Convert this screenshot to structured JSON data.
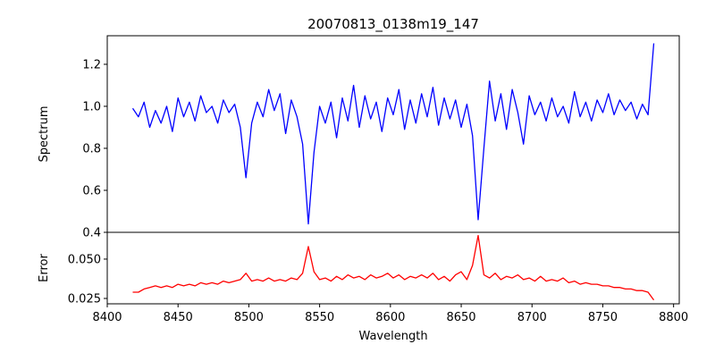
{
  "chart_data": [
    {
      "type": "line",
      "title": "20070813_0138m19_147",
      "xlabel": "",
      "ylabel": "Spectrum",
      "xlim": [
        8400,
        8804
      ],
      "ylim": [
        0.4,
        1.336
      ],
      "yticks": [
        0.4,
        0.6,
        0.8,
        1.0,
        1.2
      ],
      "ytick_labels": [
        "0.4",
        "0.6",
        "0.8",
        "1.0",
        "1.2"
      ],
      "color": "#0000ff",
      "x_start": 8418,
      "x_step": 4,
      "values": [
        0.99,
        0.95,
        1.02,
        0.9,
        0.98,
        0.92,
        1.0,
        0.88,
        1.04,
        0.95,
        1.02,
        0.93,
        1.05,
        0.97,
        1.0,
        0.92,
        1.03,
        0.97,
        1.01,
        0.9,
        0.66,
        0.92,
        1.02,
        0.95,
        1.08,
        0.98,
        1.06,
        0.87,
        1.03,
        0.95,
        0.82,
        0.44,
        0.78,
        1.0,
        0.92,
        1.02,
        0.85,
        1.04,
        0.93,
        1.1,
        0.9,
        1.05,
        0.94,
        1.02,
        0.88,
        1.04,
        0.96,
        1.08,
        0.89,
        1.03,
        0.92,
        1.06,
        0.95,
        1.09,
        0.91,
        1.04,
        0.94,
        1.03,
        0.9,
        1.01,
        0.86,
        0.46,
        0.8,
        1.12,
        0.93,
        1.06,
        0.89,
        1.08,
        0.97,
        0.82,
        1.05,
        0.96,
        1.02,
        0.93,
        1.04,
        0.95,
        1.0,
        0.92,
        1.07,
        0.95,
        1.02,
        0.93,
        1.03,
        0.97,
        1.06,
        0.96,
        1.03,
        0.98,
        1.02,
        0.94,
        1.01,
        0.96,
        1.3
      ]
    },
    {
      "type": "line",
      "xlabel": "Wavelength",
      "ylabel": "Error",
      "xlim": [
        8400,
        8804
      ],
      "ylim": [
        0.0216,
        0.067
      ],
      "xticks": [
        8400,
        8450,
        8500,
        8550,
        8600,
        8650,
        8700,
        8750,
        8800
      ],
      "xtick_labels": [
        "8400",
        "8450",
        "8500",
        "8550",
        "8600",
        "8650",
        "8700",
        "8750",
        "8800"
      ],
      "yticks": [
        0.025,
        0.05
      ],
      "ytick_labels": [
        "0.025",
        "0.050"
      ],
      "color": "#ff0000",
      "x_start": 8418,
      "x_step": 4,
      "values": [
        0.029,
        0.029,
        0.031,
        0.032,
        0.033,
        0.032,
        0.033,
        0.032,
        0.034,
        0.033,
        0.034,
        0.033,
        0.035,
        0.034,
        0.035,
        0.034,
        0.036,
        0.035,
        0.036,
        0.037,
        0.041,
        0.036,
        0.037,
        0.036,
        0.038,
        0.036,
        0.037,
        0.036,
        0.038,
        0.037,
        0.041,
        0.058,
        0.042,
        0.037,
        0.038,
        0.036,
        0.039,
        0.037,
        0.04,
        0.038,
        0.039,
        0.037,
        0.04,
        0.038,
        0.039,
        0.041,
        0.038,
        0.04,
        0.037,
        0.039,
        0.038,
        0.04,
        0.038,
        0.041,
        0.037,
        0.039,
        0.036,
        0.04,
        0.042,
        0.037,
        0.046,
        0.065,
        0.04,
        0.038,
        0.041,
        0.037,
        0.039,
        0.038,
        0.04,
        0.037,
        0.038,
        0.036,
        0.039,
        0.036,
        0.037,
        0.036,
        0.038,
        0.035,
        0.036,
        0.034,
        0.035,
        0.034,
        0.034,
        0.033,
        0.033,
        0.032,
        0.032,
        0.031,
        0.031,
        0.03,
        0.03,
        0.029,
        0.024
      ]
    }
  ]
}
